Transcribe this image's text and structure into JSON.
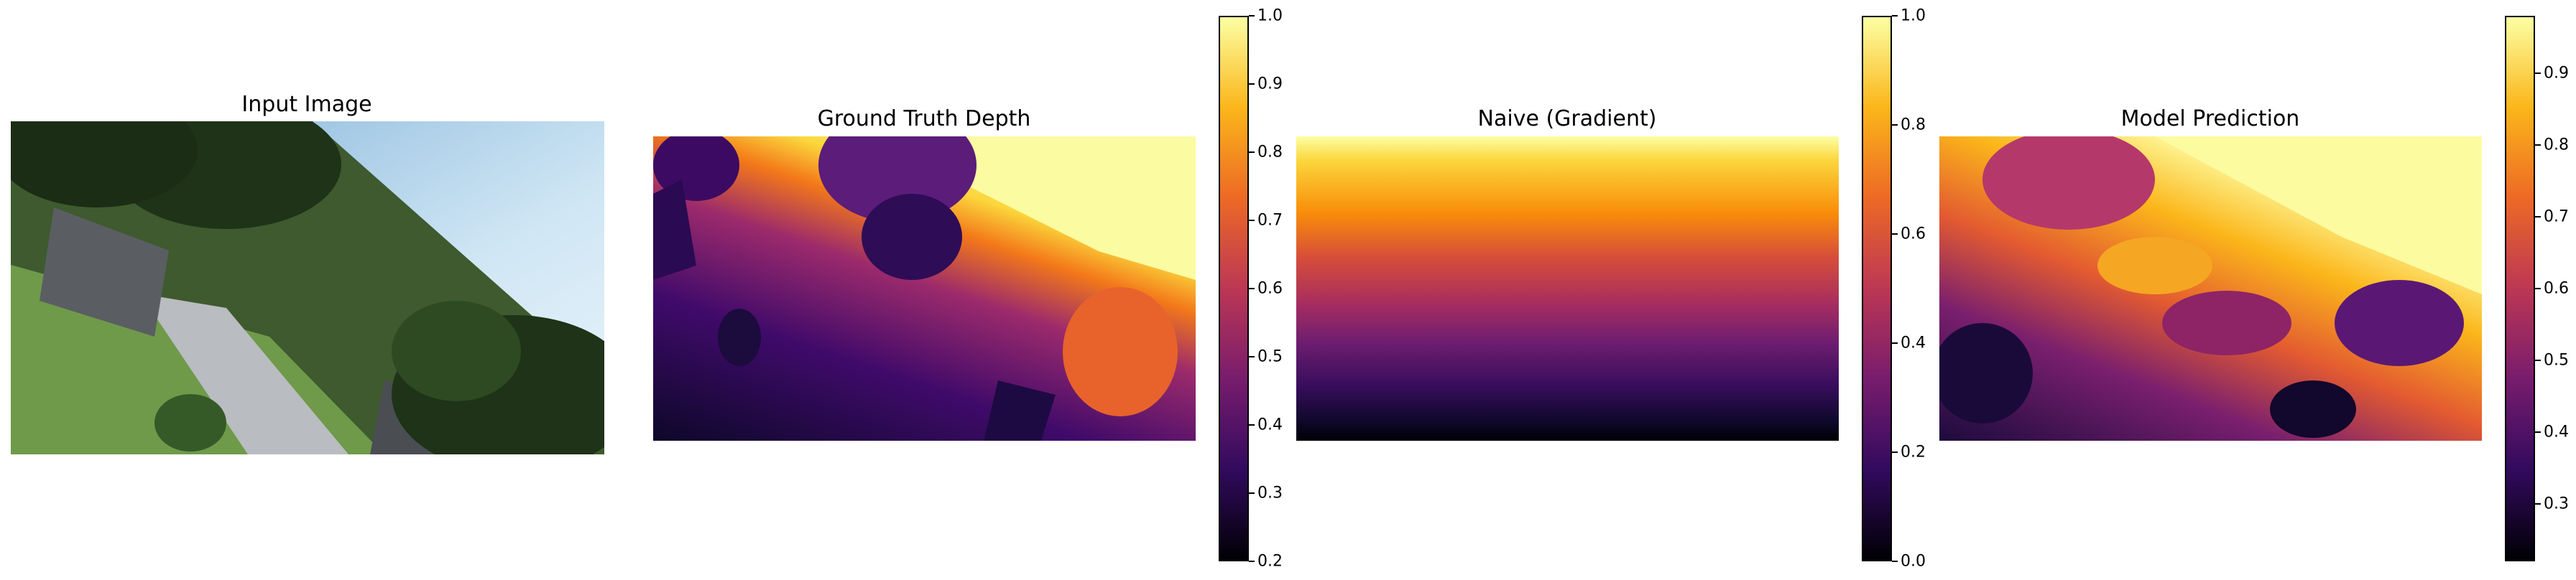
{
  "chart_data": [
    {
      "type": "image",
      "title": "Input Image"
    },
    {
      "type": "heatmap",
      "title": "Ground Truth Depth",
      "colormap": "inferno",
      "colorbar": {
        "min": 0.2,
        "max": 1.0,
        "ticks": [
          "0.2",
          "0.3",
          "0.4",
          "0.5",
          "0.6",
          "0.7",
          "0.8",
          "0.9",
          "1.0"
        ]
      }
    },
    {
      "type": "heatmap",
      "title": "Naive (Gradient)",
      "colormap": "inferno",
      "colorbar": {
        "min": 0.0,
        "max": 1.0,
        "ticks": [
          "0.0",
          "0.2",
          "0.4",
          "0.6",
          "0.8",
          "1.0"
        ]
      }
    },
    {
      "type": "heatmap",
      "title": "Model Prediction",
      "colormap": "inferno",
      "colorbar": {
        "min": 0.22,
        "max": 0.98,
        "ticks": [
          "0.3",
          "0.4",
          "0.5",
          "0.6",
          "0.7",
          "0.8",
          "0.9"
        ]
      }
    }
  ]
}
